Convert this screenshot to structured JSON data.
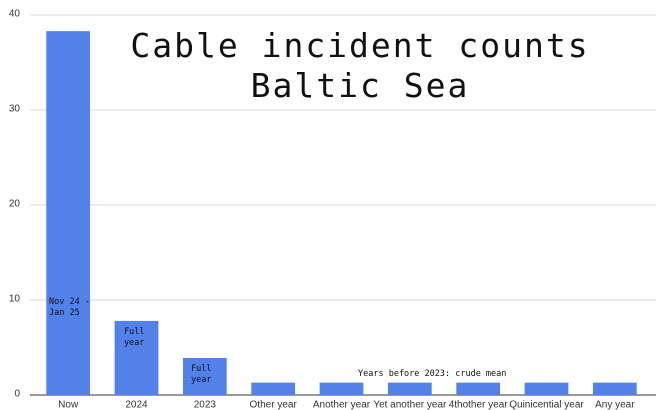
{
  "chart_data": {
    "type": "bar",
    "title": "Cable incident counts\nBaltic Sea",
    "categories": [
      "Now",
      "2024",
      "2023",
      "Other year",
      "Another year",
      "Yet another year",
      "4thother year",
      "Quinicential year",
      "Any year"
    ],
    "values": [
      38.3,
      7.8,
      3.9,
      1.3,
      1.3,
      1.3,
      1.3,
      1.3,
      1.3
    ],
    "color": "#5282e9",
    "ylim": [
      0,
      40
    ],
    "yticks": [
      0,
      10,
      20,
      30,
      40
    ],
    "grid": true,
    "annotations": [
      "Nov 24 -\nJan 25",
      "Full\nyear",
      "Full\nyear",
      "Years before 2023: crude mean"
    ]
  }
}
